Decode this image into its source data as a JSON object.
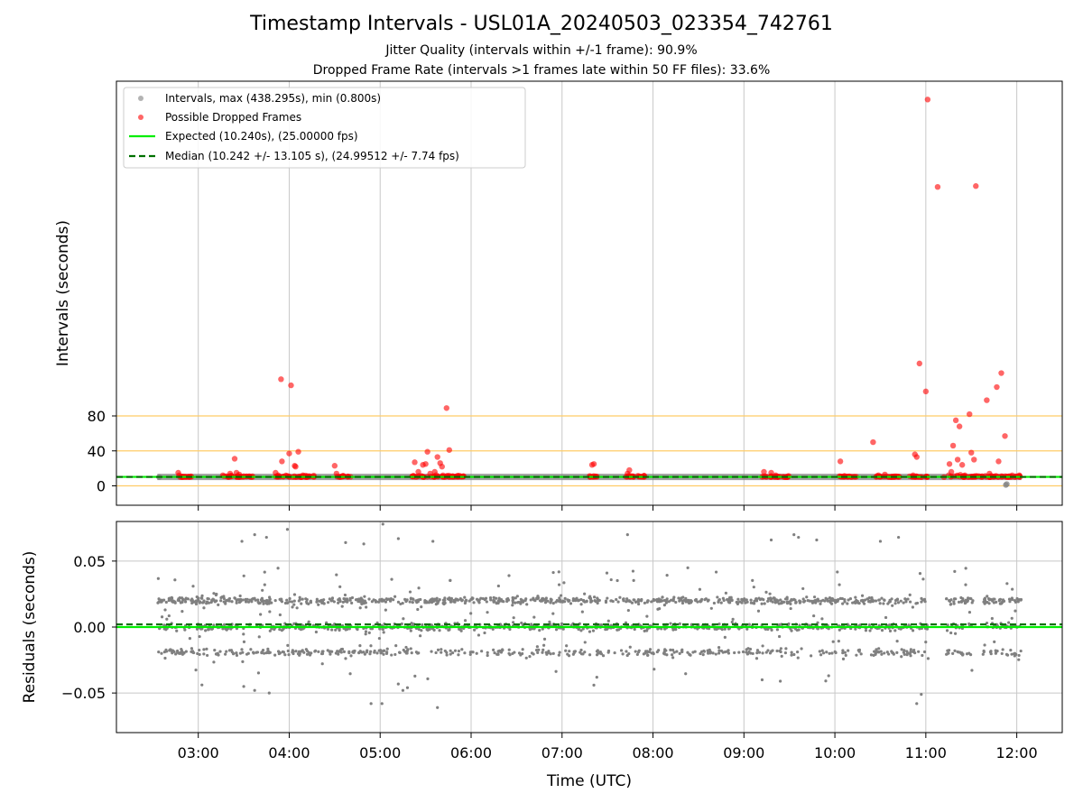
{
  "header": {
    "title": "Timestamp Intervals - USL01A_20240503_023354_742761",
    "subtitle1": "Jitter Quality (intervals within +/-1 frame): 90.9%",
    "subtitle2": "Dropped Frame Rate (intervals >1 frames late within 50 FF files): 33.6%"
  },
  "colors": {
    "intervals": "#808080",
    "dropped": "#ff0000",
    "expected": "#00ee00",
    "median": "#007000",
    "threshold": "#ffcc66",
    "grid": "#c8c8c8"
  },
  "chart_data": [
    {
      "type": "scatter",
      "ylabel": "Intervals (seconds)",
      "yticks": [
        0,
        40,
        80
      ],
      "xticks": [
        "03:00",
        "04:00",
        "05:00",
        "06:00",
        "07:00",
        "08:00",
        "09:00",
        "10:00",
        "11:00",
        "12:00"
      ],
      "threshold_lines": [
        0,
        40,
        80
      ],
      "legend": {
        "placement": "upper-left",
        "entries": [
          "Intervals, max (438.295s), min (0.800s)",
          "Possible Dropped Frames",
          "Expected (10.240s), (25.00000 fps)",
          "Median (10.242 +/- 13.105 s), (24.99512 +/- 7.74 fps)"
        ]
      },
      "expected": 10.24,
      "median": 10.242,
      "series": [
        {
          "name": "Possible Dropped Frames",
          "points": [
            [
              2.78,
              15
            ],
            [
              2.79,
              12
            ],
            [
              2.82,
              10
            ],
            [
              3.27,
              12
            ],
            [
              3.35,
              14
            ],
            [
              3.4,
              31
            ],
            [
              3.42,
              15
            ],
            [
              3.45,
              13
            ],
            [
              3.5,
              11
            ],
            [
              3.85,
              15
            ],
            [
              3.88,
              12
            ],
            [
              3.92,
              28
            ],
            [
              3.91,
              122
            ],
            [
              4.02,
              115
            ],
            [
              4.0,
              37
            ],
            [
              4.06,
              23
            ],
            [
              4.07,
              22
            ],
            [
              4.1,
              39
            ],
            [
              4.15,
              12
            ],
            [
              4.2,
              11
            ],
            [
              4.5,
              23
            ],
            [
              4.52,
              14
            ],
            [
              4.6,
              11
            ],
            [
              5.38,
              27
            ],
            [
              5.42,
              16
            ],
            [
              5.47,
              24
            ],
            [
              5.5,
              25
            ],
            [
              5.52,
              39
            ],
            [
              5.55,
              14
            ],
            [
              5.6,
              16
            ],
            [
              5.63,
              33
            ],
            [
              5.66,
              26
            ],
            [
              5.68,
              22
            ],
            [
              5.73,
              89
            ],
            [
              5.76,
              41
            ],
            [
              5.8,
              11
            ],
            [
              7.33,
              24
            ],
            [
              7.35,
              25
            ],
            [
              7.72,
              14
            ],
            [
              7.74,
              18
            ],
            [
              7.78,
              11
            ],
            [
              9.22,
              16
            ],
            [
              9.3,
              15
            ],
            [
              9.35,
              12
            ],
            [
              10.06,
              28
            ],
            [
              10.1,
              11
            ],
            [
              10.42,
              50
            ],
            [
              10.48,
              12
            ],
            [
              10.55,
              13
            ],
            [
              10.65,
              10
            ],
            [
              10.86,
              12
            ],
            [
              10.88,
              36
            ],
            [
              10.9,
              33
            ],
            [
              10.93,
              140
            ],
            [
              11.0,
              108
            ],
            [
              11.02,
              442
            ],
            [
              11.13,
              342
            ],
            [
              11.2,
              10
            ],
            [
              11.26,
              25
            ],
            [
              11.28,
              16
            ],
            [
              11.3,
              46
            ],
            [
              11.33,
              75
            ],
            [
              11.35,
              30
            ],
            [
              11.37,
              68
            ],
            [
              11.4,
              24
            ],
            [
              11.43,
              12
            ],
            [
              11.48,
              82
            ],
            [
              11.5,
              38
            ],
            [
              11.53,
              30
            ],
            [
              11.55,
              343
            ],
            [
              11.62,
              11
            ],
            [
              11.67,
              98
            ],
            [
              11.7,
              14
            ],
            [
              11.78,
              113
            ],
            [
              11.8,
              28
            ],
            [
              11.83,
              129
            ],
            [
              11.87,
              57
            ],
            [
              11.92,
              11
            ],
            [
              11.98,
              10
            ]
          ],
          "clusters": [
            [
              2.78,
              2.95,
              10,
              0.5
            ],
            [
              3.25,
              3.6,
              10,
              0.7
            ],
            [
              3.85,
              4.28,
              10,
              0.8
            ],
            [
              4.52,
              4.68,
              10,
              0.7
            ],
            [
              5.35,
              5.92,
              10,
              1.0
            ],
            [
              7.3,
              7.4,
              10,
              0.6
            ],
            [
              7.7,
              7.92,
              10,
              0.7
            ],
            [
              9.18,
              9.5,
              10,
              0.7
            ],
            [
              10.05,
              10.25,
              10,
              0.6
            ],
            [
              10.45,
              10.72,
              10,
              0.6
            ],
            [
              10.82,
              11.02,
              10,
              0.6
            ],
            [
              11.25,
              11.62,
              10,
              1.0
            ],
            [
              11.65,
              12.05,
              10,
              0.8
            ]
          ]
        },
        {
          "name": "Intervals, max (438.295s), min (0.800s)",
          "x_range": [
            2.55,
            12.05
          ],
          "value": 10.24,
          "outliers": [
            [
              2.57,
              10
            ],
            [
              11.88,
              1
            ],
            [
              11.89,
              2
            ]
          ]
        }
      ]
    },
    {
      "type": "scatter",
      "xlabel": "Time (UTC)",
      "ylabel": "Residuals (seconds)",
      "yticks": [
        "0.05",
        "0.00",
        "−0.05"
      ],
      "ytick_values": [
        0.05,
        0,
        -0.05
      ],
      "ylim": [
        -0.08,
        0.08
      ],
      "xlim": [
        2.1,
        12.5
      ],
      "expected": 0.0,
      "median": 0.002,
      "bands": [
        {
          "center": 0.02,
          "weight": 0.42
        },
        {
          "center": 0.0,
          "weight": 0.35
        },
        {
          "center": -0.019,
          "weight": 0.23
        }
      ],
      "gaps": [
        [
          11.03,
          11.22
        ],
        [
          11.52,
          11.62
        ]
      ],
      "x_range": [
        2.55,
        12.05
      ],
      "extremes": [
        [
          3.48,
          0.065
        ],
        [
          3.62,
          0.07
        ],
        [
          3.75,
          0.068
        ],
        [
          3.98,
          0.074
        ],
        [
          4.62,
          0.064
        ],
        [
          4.82,
          0.063
        ],
        [
          5.03,
          0.078
        ],
        [
          5.2,
          0.067
        ],
        [
          5.58,
          0.065
        ],
        [
          7.72,
          0.07
        ],
        [
          9.3,
          0.066
        ],
        [
          9.55,
          0.07
        ],
        [
          9.6,
          0.068
        ],
        [
          9.8,
          0.066
        ],
        [
          10.5,
          0.065
        ],
        [
          10.7,
          0.068
        ],
        [
          3.5,
          -0.045
        ],
        [
          3.62,
          -0.048
        ],
        [
          3.78,
          -0.05
        ],
        [
          4.9,
          -0.058
        ],
        [
          5.02,
          -0.058
        ],
        [
          5.25,
          -0.048
        ],
        [
          5.3,
          -0.046
        ],
        [
          5.63,
          -0.061
        ],
        [
          7.35,
          -0.044
        ],
        [
          9.2,
          -0.04
        ],
        [
          9.4,
          -0.041
        ],
        [
          10.9,
          -0.058
        ],
        [
          10.95,
          -0.051
        ]
      ]
    }
  ]
}
